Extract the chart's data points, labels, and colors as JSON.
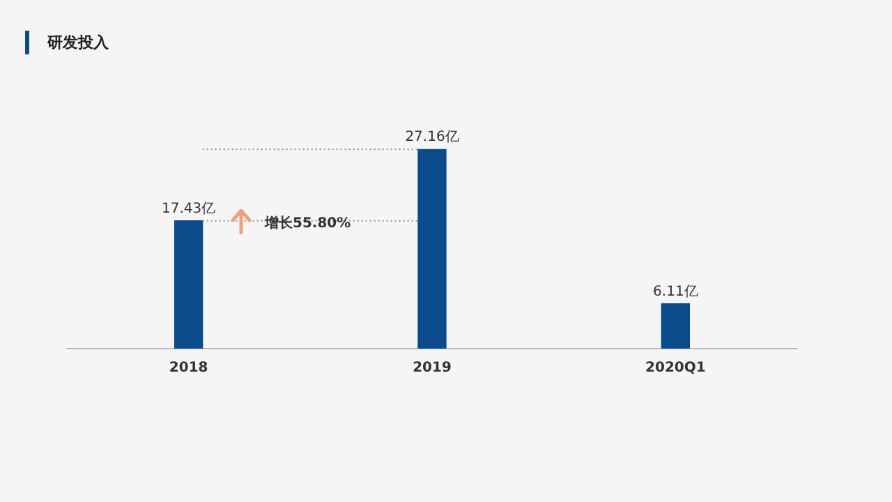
{
  "chart_data": {
    "type": "bar",
    "title": "研发投入",
    "categories": [
      "2018",
      "2019",
      "2020Q1"
    ],
    "values": [
      17.43,
      27.16,
      6.11
    ],
    "value_labels": [
      "17.43亿",
      "27.16亿",
      "6.11亿"
    ],
    "color": "#0b4a8b",
    "ref_lines": [
      {
        "axis": "y",
        "value": 17.43,
        "line_style": "dotted",
        "color": "#7a9a8a"
      },
      {
        "axis": "y",
        "value": 27.16,
        "line_style": "dotted",
        "color": "#7a9a8a"
      }
    ],
    "annotations": [
      "增长55.80%"
    ],
    "grid": false,
    "legend": false
  }
}
